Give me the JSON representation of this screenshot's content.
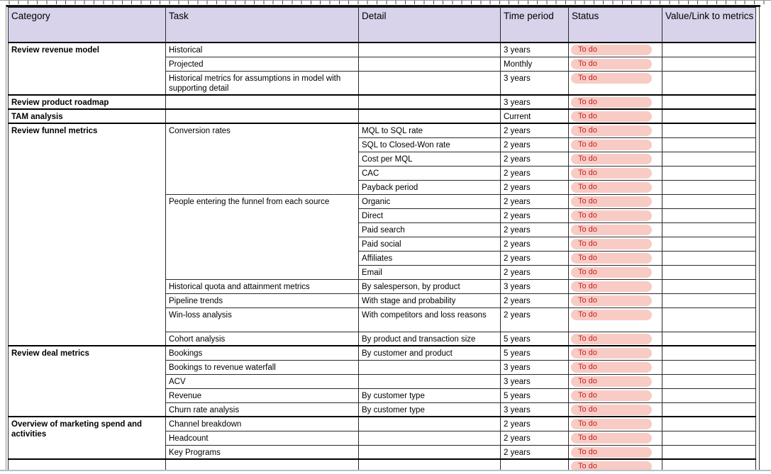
{
  "colors": {
    "header_bg": "#d8d3ea",
    "pill_bg": "#f8cbc5",
    "pill_text": "#c5221f"
  },
  "table": {
    "header": [
      "Category",
      "Task",
      "Detail",
      "Time period",
      "Status",
      "Value/Link to metrics"
    ],
    "groups": [
      {
        "category": "Review revenue model",
        "rows": [
          {
            "task": "Historical",
            "detail": "",
            "time": "3 years",
            "status": "To do",
            "value": ""
          },
          {
            "task": "Projected",
            "detail": "",
            "time": "Monthly",
            "status": "To do",
            "value": ""
          },
          {
            "task": "Historical metrics for assumptions in model with supporting detail",
            "detail": "",
            "time": "3 years",
            "status": "To do",
            "value": "",
            "tall": true
          }
        ]
      },
      {
        "category": "Review product roadmap",
        "rows": [
          {
            "task": "",
            "detail": "",
            "time": "3 years",
            "status": "To do",
            "value": ""
          }
        ]
      },
      {
        "category": "TAM analysis",
        "rows": [
          {
            "task": "",
            "detail": "",
            "time": "Current",
            "status": "To do",
            "value": ""
          }
        ]
      },
      {
        "category": "Review funnel metrics",
        "rows": [
          {
            "task": "Conversion rates",
            "task_span": 5,
            "detail": "MQL to SQL rate",
            "time": "2 years",
            "status": "To do",
            "value": ""
          },
          {
            "detail": "SQL to Closed-Won rate",
            "time": "2 years",
            "status": "To do",
            "value": ""
          },
          {
            "detail": "Cost per MQL",
            "time": "2 years",
            "status": "To do",
            "value": ""
          },
          {
            "detail": "CAC",
            "time": "2 years",
            "status": "To do",
            "value": ""
          },
          {
            "detail": "Payback period",
            "time": "2 years",
            "status": "To do",
            "value": ""
          },
          {
            "task": "People entering the funnel from each source",
            "task_span": 6,
            "detail": "Organic",
            "time": "2 years",
            "status": "To do",
            "value": ""
          },
          {
            "detail": "Direct",
            "time": "2 years",
            "status": "To do",
            "value": ""
          },
          {
            "detail": "Paid search",
            "time": "2 years",
            "status": "To do",
            "value": ""
          },
          {
            "detail": "Paid social",
            "time": "2 years",
            "status": "To do",
            "value": ""
          },
          {
            "detail": "Affiliates",
            "time": "2 years",
            "status": "To do",
            "value": ""
          },
          {
            "detail": "Email",
            "time": "2 years",
            "status": "To do",
            "value": ""
          },
          {
            "task": "Historical quota and attainment metrics",
            "detail": "By salesperson, by product",
            "time": "3 years",
            "status": "To do",
            "value": ""
          },
          {
            "task": "Pipeline trends",
            "detail": "With stage and probability",
            "time": "2 years",
            "status": "To do",
            "value": ""
          },
          {
            "task": "Win-loss analysis",
            "detail": "With competitors and loss reasons",
            "time": "2 years",
            "status": "To do",
            "value": "",
            "tall": true
          },
          {
            "task": "Cohort analysis",
            "detail": "By product and transaction size",
            "time": "5 years",
            "status": "To do",
            "value": ""
          }
        ]
      },
      {
        "category": "Review deal metrics",
        "rows": [
          {
            "task": "Bookings",
            "detail": "By customer and product",
            "time": "5 years",
            "status": "To do",
            "value": ""
          },
          {
            "task": "Bookings to revenue waterfall",
            "detail": "",
            "time": "3 years",
            "status": "To do",
            "value": ""
          },
          {
            "task": "ACV",
            "detail": "",
            "time": "3 years",
            "status": "To do",
            "value": ""
          },
          {
            "task": "Revenue",
            "detail": "By customer type",
            "time": "5 years",
            "status": "To do",
            "value": ""
          },
          {
            "task": "Churn rate analysis",
            "detail": "By customer type",
            "time": "3 years",
            "status": "To do",
            "value": ""
          }
        ]
      },
      {
        "category": "Overview of marketing spend and activities",
        "rows": [
          {
            "task": "Channel breakdown",
            "detail": "",
            "time": "2 years",
            "status": "To do",
            "value": ""
          },
          {
            "task": "Headcount",
            "detail": "",
            "time": "2 years",
            "status": "To do",
            "value": ""
          },
          {
            "task": "Key Programs",
            "detail": "",
            "time": "2 years",
            "status": "To do",
            "value": ""
          }
        ]
      }
    ],
    "partial_row": {
      "category": "",
      "task": "",
      "detail": "",
      "time": "",
      "status": "To do",
      "value": ""
    }
  }
}
